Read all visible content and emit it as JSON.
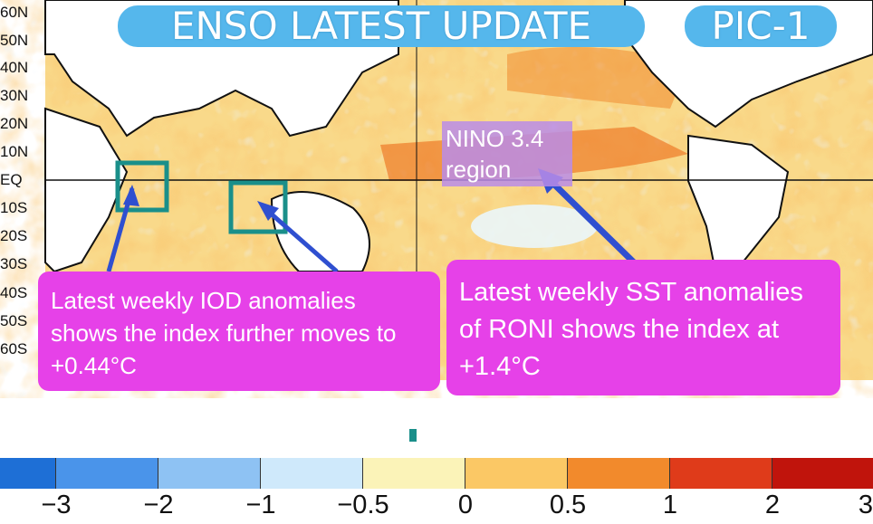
{
  "banner": {
    "title": "ENSO LATEST UPDATE",
    "pic": "PIC-1"
  },
  "map": {
    "lat_labels": [
      "60N",
      "50N",
      "40N",
      "30N",
      "20N",
      "10N",
      "EQ",
      "10S",
      "20S",
      "30S",
      "40S",
      "50S",
      "60S"
    ],
    "nino_label": "NINO 3.4 region"
  },
  "callouts": {
    "iod": "Latest weekly IOD anomalies shows the index further moves to +0.44°C",
    "sst": "Latest weekly SST anomalies of RONI shows the index at +1.4°C"
  },
  "colorbar": {
    "colors": [
      "#1e6fd6",
      "#4a94ea",
      "#8ec2f3",
      "#cfe9fb",
      "#fbf3b8",
      "#fbc865",
      "#f28a2c",
      "#df3b1a",
      "#c0140c"
    ],
    "ticks": [
      "−3",
      "−2",
      "−1",
      "−0.5",
      "0",
      "0.5",
      "1",
      "2",
      "3"
    ]
  },
  "colors": {
    "callout": "#e641e8",
    "banner": "#55b7ec",
    "box_outline": "#1a8f8a",
    "arrow": "#2f4fd0"
  }
}
